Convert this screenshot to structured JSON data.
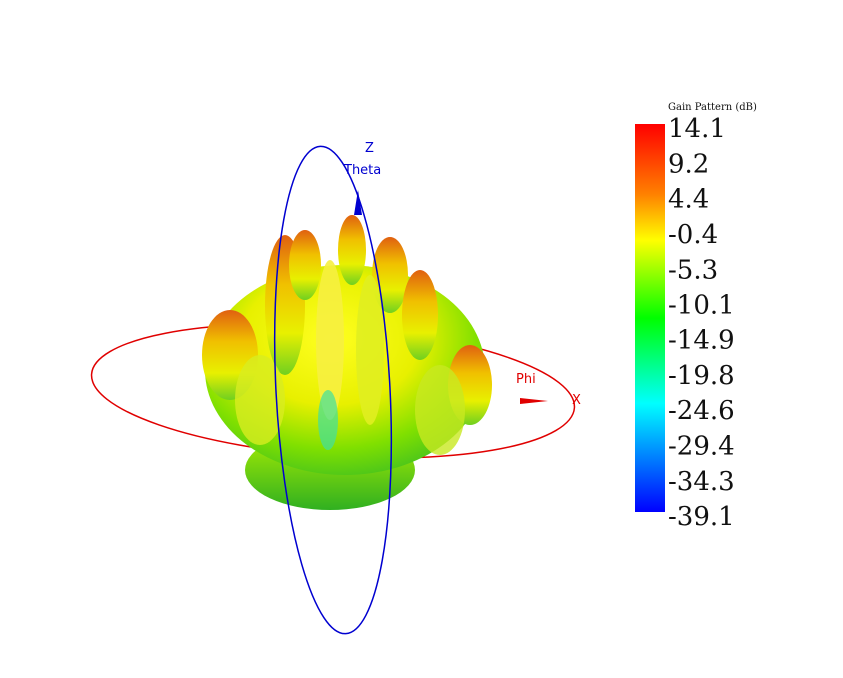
{
  "colorbar": {
    "title": "Gain Pattern (dB)",
    "ticks": [
      14.1,
      9.2,
      4.4,
      -0.4,
      -5.3,
      -10.1,
      -14.9,
      -19.8,
      -24.6,
      -29.4,
      -34.3,
      -39.1
    ]
  },
  "axes": {
    "z": "Z",
    "theta": "Theta",
    "x": "X",
    "phi": "Phi"
  }
}
